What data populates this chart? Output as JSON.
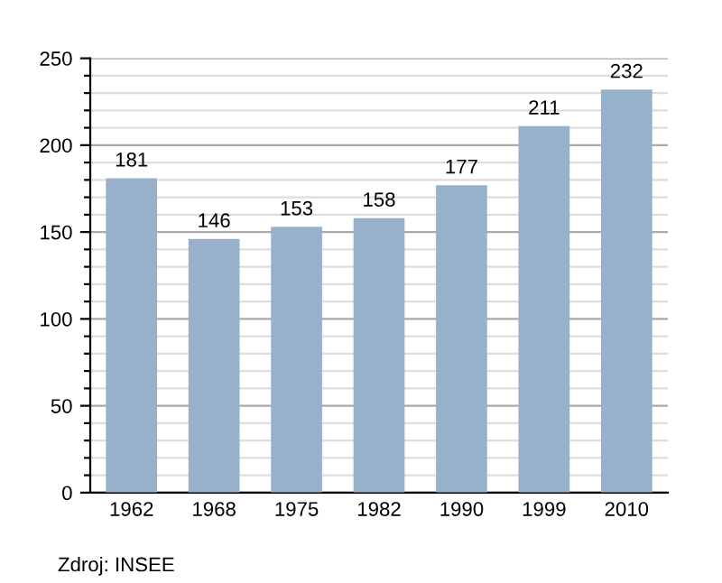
{
  "chart_data": {
    "type": "bar",
    "categories": [
      "1962",
      "1968",
      "1975",
      "1982",
      "1990",
      "1999",
      "2010"
    ],
    "values": [
      181,
      146,
      153,
      158,
      177,
      211,
      232
    ],
    "color": "#98b1cb",
    "data_labels": true,
    "ylim": [
      0,
      250
    ],
    "yticks": [
      0,
      {
        "value": 10,
        "label": null
      },
      {
        "value": 20,
        "label": null
      },
      {
        "value": 30,
        "label": null
      },
      {
        "value": 40,
        "label": null
      },
      50,
      {
        "value": 60,
        "label": null
      },
      {
        "value": 70,
        "label": null
      },
      {
        "value": 80,
        "label": null
      },
      {
        "value": 90,
        "label": null
      },
      100,
      {
        "value": 110,
        "label": null
      },
      {
        "value": 120,
        "label": null
      },
      {
        "value": 130,
        "label": null
      },
      {
        "value": 140,
        "label": null
      },
      150,
      {
        "value": 160,
        "label": null
      },
      {
        "value": 170,
        "label": null
      },
      {
        "value": 180,
        "label": null
      },
      {
        "value": 190,
        "label": null
      },
      200,
      {
        "value": 210,
        "label": null
      },
      {
        "value": 220,
        "label": null
      },
      {
        "value": 230,
        "label": null
      },
      {
        "value": 240,
        "label": null
      },
      250
    ],
    "grid": "y",
    "annotations": [
      "Zdroj: INSEE"
    ]
  }
}
